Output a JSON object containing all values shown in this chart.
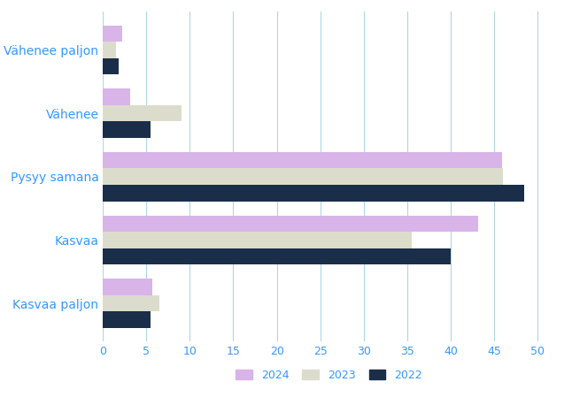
{
  "categories": [
    "Kasvaa paljon",
    "Kasvaa",
    "Pysyy samana",
    "Vähenee",
    "Vähenee paljon"
  ],
  "series": {
    "2024": [
      5.7,
      43.2,
      45.9,
      3.1,
      2.2
    ],
    "2023": [
      6.5,
      35.5,
      46.0,
      9.0,
      1.5
    ],
    "2022": [
      5.5,
      40.0,
      48.5,
      5.5,
      1.8
    ]
  },
  "colors": {
    "2024": "#d8b4e8",
    "2023": "#dcdccc",
    "2022": "#1a2e4a"
  },
  "xlim": [
    0,
    52
  ],
  "xticks": [
    0,
    5,
    10,
    15,
    20,
    25,
    30,
    35,
    40,
    45,
    50
  ],
  "legend_labels": [
    "2024",
    "2023",
    "2022"
  ],
  "background_color": "#ffffff",
  "grid_color": "#add8e6",
  "label_color": "#3399ff",
  "tick_color": "#3399ff",
  "bar_height": 0.26,
  "ytick_labels": [
    "Kasvaa paljon",
    "Kasvaa",
    "Pysyy samana",
    "Vähenee",
    "Vähenee paljon"
  ]
}
